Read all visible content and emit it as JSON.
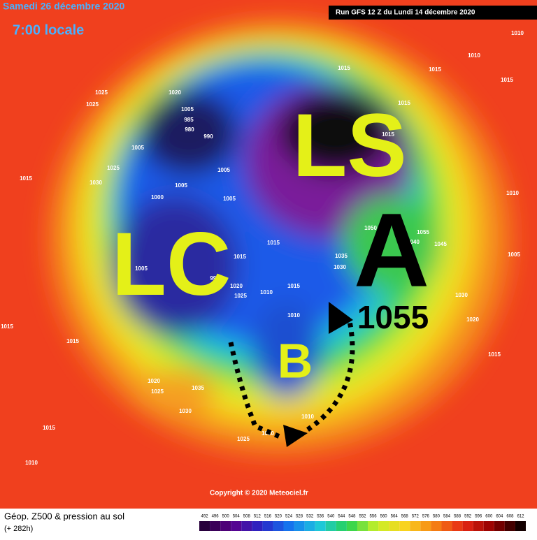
{
  "header": {
    "date": "Samedi 26 décembre 2020",
    "time": "7:00 locale",
    "run": "Run GFS 12 Z du Lundi 14 décembre 2020"
  },
  "annotations": {
    "ls": "LS",
    "lc": "LC",
    "a": "A",
    "a_value": "1055",
    "b": "B"
  },
  "isobar_labels": [
    "1015",
    "1015",
    "1010",
    "1025",
    "1025",
    "1020",
    "1005",
    "985",
    "980",
    "990",
    "1005",
    "1025",
    "1015",
    "1030",
    "1000",
    "1005",
    "1005",
    "1005",
    "1015",
    "1015",
    "1005",
    "995",
    "1020",
    "1025",
    "1010",
    "1015",
    "1010",
    "1030",
    "1035",
    "1050",
    "1055",
    "1045",
    "1040",
    "1010",
    "1030",
    "1020",
    "1015",
    "1015",
    "1015",
    "1020",
    "1025",
    "1035",
    "1030",
    "1015",
    "1010",
    "1025",
    "1020",
    "1010",
    "1015",
    "1010",
    "1015",
    "1005",
    "1015"
  ],
  "footer": {
    "title": "Géop. Z500 & pression au sol",
    "subtitle": "(+ 282h)",
    "copyright": "Copyright © 2020 Meteociel.fr"
  },
  "scale": [
    "492",
    "496",
    "500",
    "504",
    "508",
    "512",
    "516",
    "520",
    "524",
    "528",
    "532",
    "536",
    "540",
    "544",
    "548",
    "552",
    "556",
    "560",
    "564",
    "568",
    "572",
    "576",
    "580",
    "584",
    "588",
    "592",
    "596",
    "600",
    "604",
    "608",
    "612"
  ]
}
